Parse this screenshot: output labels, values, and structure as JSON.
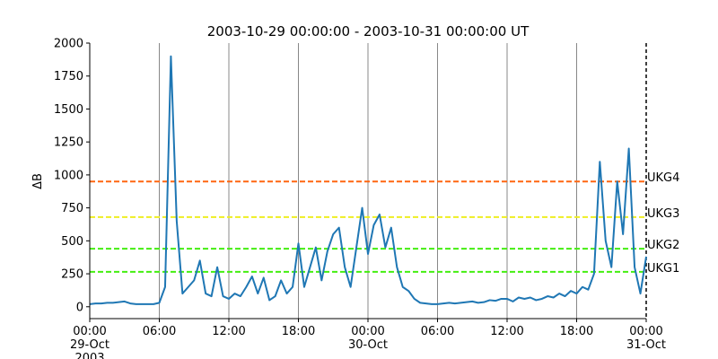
{
  "chart_data": {
    "type": "line",
    "title": "2003-10-29 00:00:00 - 2003-10-31 00:00:00 UT",
    "y_label": "ΔB",
    "x": [
      "2003-10-29 00:00",
      "2003-10-29 00:30",
      "2003-10-29 01:00",
      "2003-10-29 01:30",
      "2003-10-29 02:00",
      "2003-10-29 02:30",
      "2003-10-29 03:00",
      "2003-10-29 03:30",
      "2003-10-29 04:00",
      "2003-10-29 04:30",
      "2003-10-29 05:00",
      "2003-10-29 05:30",
      "2003-10-29 06:00",
      "2003-10-29 06:30",
      "2003-10-29 07:00",
      "2003-10-29 07:30",
      "2003-10-29 08:00",
      "2003-10-29 08:30",
      "2003-10-29 09:00",
      "2003-10-29 09:30",
      "2003-10-29 10:00",
      "2003-10-29 10:30",
      "2003-10-29 11:00",
      "2003-10-29 11:30",
      "2003-10-29 12:00",
      "2003-10-29 12:30",
      "2003-10-29 13:00",
      "2003-10-29 13:30",
      "2003-10-29 14:00",
      "2003-10-29 14:30",
      "2003-10-29 15:00",
      "2003-10-29 15:30",
      "2003-10-29 16:00",
      "2003-10-29 16:30",
      "2003-10-29 17:00",
      "2003-10-29 17:30",
      "2003-10-29 18:00",
      "2003-10-29 18:30",
      "2003-10-29 19:00",
      "2003-10-29 19:30",
      "2003-10-29 20:00",
      "2003-10-29 20:30",
      "2003-10-29 21:00",
      "2003-10-29 21:30",
      "2003-10-29 22:00",
      "2003-10-29 22:30",
      "2003-10-29 23:00",
      "2003-10-29 23:30",
      "2003-10-30 00:00",
      "2003-10-30 00:30",
      "2003-10-30 01:00",
      "2003-10-30 01:30",
      "2003-10-30 02:00",
      "2003-10-30 02:30",
      "2003-10-30 03:00",
      "2003-10-30 03:30",
      "2003-10-30 04:00",
      "2003-10-30 04:30",
      "2003-10-30 05:00",
      "2003-10-30 05:30",
      "2003-10-30 06:00",
      "2003-10-30 06:30",
      "2003-10-30 07:00",
      "2003-10-30 07:30",
      "2003-10-30 08:00",
      "2003-10-30 08:30",
      "2003-10-30 09:00",
      "2003-10-30 09:30",
      "2003-10-30 10:00",
      "2003-10-30 10:30",
      "2003-10-30 11:00",
      "2003-10-30 11:30",
      "2003-10-30 12:00",
      "2003-10-30 12:30",
      "2003-10-30 13:00",
      "2003-10-30 13:30",
      "2003-10-30 14:00",
      "2003-10-30 14:30",
      "2003-10-30 15:00",
      "2003-10-30 15:30",
      "2003-10-30 16:00",
      "2003-10-30 16:30",
      "2003-10-30 17:00",
      "2003-10-30 17:30",
      "2003-10-30 18:00",
      "2003-10-30 18:30",
      "2003-10-30 19:00",
      "2003-10-30 19:30",
      "2003-10-30 20:00",
      "2003-10-30 20:30",
      "2003-10-30 21:00",
      "2003-10-30 21:30",
      "2003-10-30 22:00",
      "2003-10-30 22:30",
      "2003-10-30 23:00",
      "2003-10-30 23:30",
      "2003-10-31 00:00"
    ],
    "series": [
      {
        "color": "#1f77b4",
        "values": [
          20,
          25,
          25,
          30,
          30,
          35,
          40,
          25,
          20,
          20,
          20,
          20,
          30,
          150,
          1900,
          650,
          100,
          150,
          200,
          350,
          100,
          80,
          300,
          80,
          60,
          100,
          80,
          150,
          230,
          100,
          220,
          50,
          80,
          200,
          100,
          150,
          480,
          150,
          300,
          450,
          200,
          420,
          550,
          600,
          300,
          150,
          450,
          750,
          400,
          620,
          700,
          450,
          600,
          300,
          150,
          120,
          60,
          30,
          25,
          20,
          20,
          25,
          30,
          25,
          30,
          35,
          40,
          30,
          35,
          50,
          45,
          60,
          60,
          40,
          70,
          60,
          70,
          50,
          60,
          80,
          70,
          100,
          80,
          120,
          100,
          150,
          130,
          250,
          1100,
          500,
          300,
          950,
          550,
          1200,
          300,
          100,
          380
        ]
      }
    ],
    "thresholds": [
      {
        "name": "UKG1",
        "value": 265,
        "color": "#44ee11"
      },
      {
        "name": "UKG2",
        "value": 440,
        "color": "#44ee11"
      },
      {
        "name": "UKG3",
        "value": 680,
        "color": "#eeee22"
      },
      {
        "name": "UKG4",
        "value": 950,
        "color": "#ff6611"
      }
    ],
    "xlim": [
      "2003-10-29 00:00",
      "2003-10-31 00:00"
    ],
    "xticks": [
      {
        "value": "2003-10-29 00:00",
        "label": "00:00\n29-Oct\n2003"
      },
      {
        "value": "2003-10-29 06:00",
        "label": "06:00"
      },
      {
        "value": "2003-10-29 12:00",
        "label": "12:00"
      },
      {
        "value": "2003-10-29 18:00",
        "label": "18:00"
      },
      {
        "value": "2003-10-30 00:00",
        "label": "00:00\n30-Oct"
      },
      {
        "value": "2003-10-30 06:00",
        "label": "06:00"
      },
      {
        "value": "2003-10-30 12:00",
        "label": "12:00"
      },
      {
        "value": "2003-10-30 18:00",
        "label": "18:00"
      },
      {
        "value": "2003-10-31 00:00",
        "label": "00:00\n31-Oct"
      }
    ],
    "ylim": [
      -90,
      2000
    ],
    "yticks": [
      0,
      250,
      500,
      750,
      1000,
      1250,
      1500,
      1750,
      2000
    ],
    "grid": "x"
  }
}
